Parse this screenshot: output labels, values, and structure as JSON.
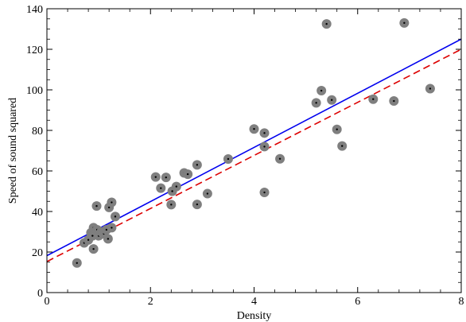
{
  "chart_data": {
    "type": "scatter",
    "title": "",
    "xlabel": "Density",
    "ylabel": "Speed of sound  squared",
    "xlim": [
      0,
      8
    ],
    "ylim": [
      0,
      140
    ],
    "x_ticks": [
      "0",
      "2",
      "4",
      "6",
      "8"
    ],
    "y_ticks": [
      "0",
      "20",
      "40",
      "60",
      "80",
      "100",
      "120",
      "140"
    ],
    "grid": false,
    "legend": "none",
    "points": [
      [
        0.58,
        14.6
      ],
      [
        0.72,
        24.5
      ],
      [
        0.8,
        26.0
      ],
      [
        0.85,
        29.5
      ],
      [
        0.88,
        28.0
      ],
      [
        0.9,
        32.0
      ],
      [
        0.9,
        21.5
      ],
      [
        0.96,
        42.7
      ],
      [
        0.97,
        31.0
      ],
      [
        1.0,
        28.0
      ],
      [
        1.05,
        30.0
      ],
      [
        1.1,
        29.0
      ],
      [
        1.15,
        31.0
      ],
      [
        1.18,
        26.5
      ],
      [
        1.2,
        42.0
      ],
      [
        1.25,
        44.5
      ],
      [
        1.25,
        32.0
      ],
      [
        1.32,
        37.5
      ],
      [
        2.1,
        57.0
      ],
      [
        2.2,
        51.5
      ],
      [
        2.3,
        56.8
      ],
      [
        2.4,
        43.4
      ],
      [
        2.42,
        50.0
      ],
      [
        2.5,
        52.3
      ],
      [
        2.65,
        59.0
      ],
      [
        2.72,
        58.4
      ],
      [
        2.9,
        63.0
      ],
      [
        2.9,
        43.5
      ],
      [
        3.1,
        48.8
      ],
      [
        3.5,
        65.9
      ],
      [
        4.0,
        80.7
      ],
      [
        4.2,
        78.7
      ],
      [
        4.2,
        72.0
      ],
      [
        4.2,
        49.4
      ],
      [
        4.5,
        66.0
      ],
      [
        5.2,
        93.6
      ],
      [
        5.3,
        99.6
      ],
      [
        5.4,
        132.5
      ],
      [
        5.5,
        95.0
      ],
      [
        5.6,
        80.5
      ],
      [
        5.7,
        72.3
      ],
      [
        6.3,
        95.4
      ],
      [
        6.7,
        94.5
      ],
      [
        6.9,
        133.0
      ],
      [
        7.4,
        100.6
      ]
    ],
    "fit_lines": [
      {
        "style": "solid",
        "color": "#0000ee",
        "x": [
          0,
          8
        ],
        "y": [
          18.2,
          125.0
        ]
      },
      {
        "style": "dashed",
        "color": "#dd0000",
        "x": [
          0,
          8
        ],
        "y": [
          15.3,
          120.0
        ]
      }
    ],
    "marker_color": "#7f7f7f",
    "marker_center_color": "#000000"
  }
}
